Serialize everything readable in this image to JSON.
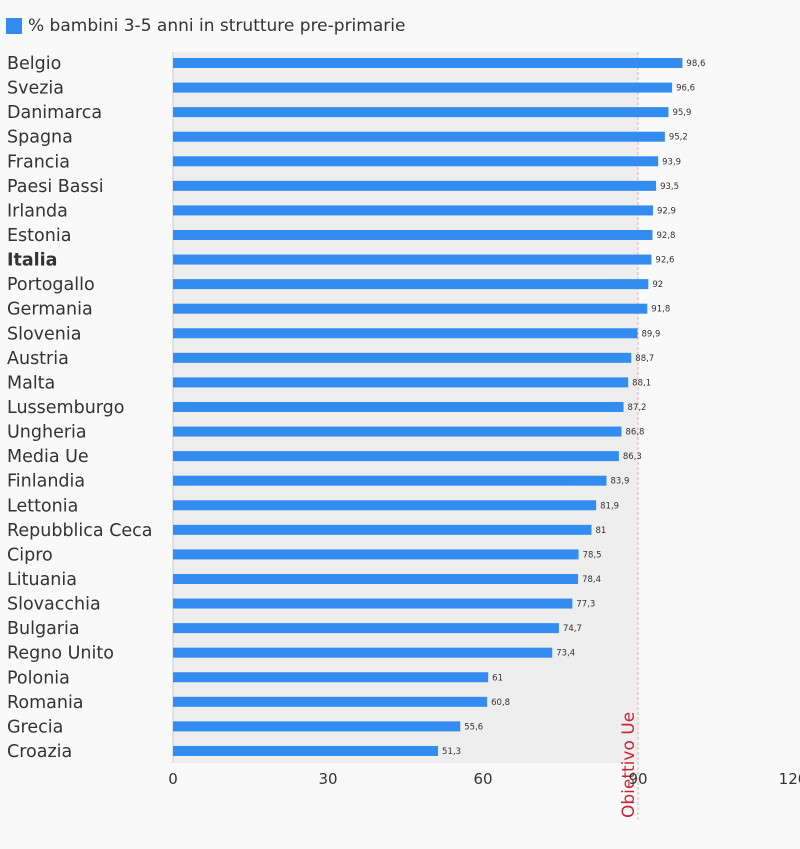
{
  "colors": {
    "bar": "#338cf0",
    "plot_background": "#eeeeee",
    "reference_line": "#e8aab0",
    "reference_label": "#cc2233"
  },
  "chart_data": {
    "type": "bar",
    "orientation": "horizontal",
    "categories": [
      "Belgio",
      "Svezia",
      "Danimarca",
      "Spagna",
      "Francia",
      "Paesi Bassi",
      "Irlanda",
      "Estonia",
      "Italia",
      "Portogallo",
      "Germania",
      "Slovenia",
      "Austria",
      "Malta",
      "Lussemburgo",
      "Ungheria",
      "Media Ue",
      "Finlandia",
      "Lettonia",
      "Repubblica Ceca",
      "Cipro",
      "Lituania",
      "Slovacchia",
      "Bulgaria",
      "Regno Unito",
      "Polonia",
      "Romania",
      "Grecia",
      "Croazia"
    ],
    "value_labels": [
      "98,6",
      "96,6",
      "95,9",
      "95,2",
      "93,9",
      "93,5",
      "92,9",
      "92,8",
      "92,6",
      "92",
      "91,8",
      "89,9",
      "88,7",
      "88,1",
      "87,2",
      "86,8",
      "86,3",
      "83,9",
      "81,9",
      "81",
      "78,5",
      "78,4",
      "77,3",
      "74,7",
      "73,4",
      "61",
      "60,8",
      "55,6",
      "51,3"
    ],
    "series": [
      {
        "name": "% bambini 3-5 anni in strutture pre-primarie",
        "values": [
          98.6,
          96.6,
          95.9,
          95.2,
          93.9,
          93.5,
          92.9,
          92.8,
          92.6,
          92,
          91.8,
          89.9,
          88.7,
          88.1,
          87.2,
          86.8,
          86.3,
          83.9,
          81.9,
          81,
          78.5,
          78.4,
          77.3,
          74.7,
          73.4,
          61,
          60.8,
          55.6,
          51.3
        ]
      }
    ],
    "highlighted_category": "Italia",
    "xlim": [
      0,
      120
    ],
    "x_ticks": [
      "0",
      "30",
      "60",
      "90",
      "120"
    ],
    "shaded_region": [
      0,
      90
    ],
    "reference_line": {
      "value": 90,
      "label": "Obiettivo Ue"
    },
    "legend_position": "top-left",
    "grid": false
  }
}
